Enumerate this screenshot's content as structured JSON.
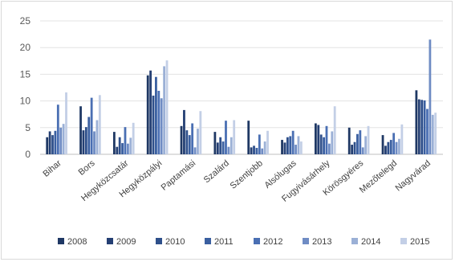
{
  "chart_data": {
    "type": "bar",
    "title": "",
    "xlabel": "",
    "ylabel": "",
    "ylim": [
      0,
      25
    ],
    "yticks": [
      0,
      5,
      10,
      15,
      20,
      25
    ],
    "grid": "horizontal",
    "legend_position": "bottom",
    "categories": [
      "Bihar",
      "Bors",
      "Hegyközcsatár",
      "Hegyközpályi",
      "Paptamási",
      "Szalárd",
      "Szentjobb",
      "Alsólugas",
      "Fugyivásárhely",
      "Körösgyéres",
      "Mezőtelegd",
      "Nagyvárad"
    ],
    "series": [
      {
        "name": "2008",
        "color": "#1f3864",
        "values": [
          3.2,
          9.0,
          4.2,
          14.8,
          5.3,
          4.2,
          6.3,
          2.7,
          5.8,
          5.0,
          3.6,
          12.0
        ]
      },
      {
        "name": "2009",
        "color": "#243f73",
        "values": [
          4.3,
          4.5,
          1.4,
          15.7,
          8.3,
          2.2,
          1.3,
          2.2,
          5.5,
          1.8,
          1.6,
          10.3
        ]
      },
      {
        "name": "2010",
        "color": "#2e4f8a",
        "values": [
          3.6,
          5.1,
          3.2,
          11.0,
          4.5,
          3.2,
          1.6,
          3.2,
          3.7,
          2.3,
          2.3,
          10.2
        ]
      },
      {
        "name": "2011",
        "color": "#3a5fa0",
        "values": [
          4.4,
          7.0,
          2.1,
          14.5,
          3.6,
          2.4,
          1.2,
          3.4,
          3.2,
          3.8,
          2.7,
          10.1
        ]
      },
      {
        "name": "2012",
        "color": "#4a6fb3",
        "values": [
          9.3,
          10.6,
          5.1,
          11.9,
          5.8,
          6.3,
          3.7,
          4.4,
          5.3,
          4.5,
          4.0,
          8.5
        ]
      },
      {
        "name": "2013",
        "color": "#6f8cc4",
        "values": [
          5.0,
          4.3,
          2.0,
          10.5,
          1.3,
          1.4,
          1.1,
          1.8,
          2.0,
          1.3,
          2.3,
          21.5
        ]
      },
      {
        "name": "2014",
        "color": "#9bb0d6",
        "values": [
          5.7,
          6.4,
          3.1,
          16.5,
          4.8,
          3.2,
          2.4,
          3.4,
          4.3,
          3.4,
          2.9,
          7.4
        ]
      },
      {
        "name": "2015",
        "color": "#c3cfe6",
        "values": [
          11.6,
          11.1,
          5.9,
          17.6,
          8.1,
          6.4,
          4.4,
          2.4,
          9.0,
          5.3,
          5.6,
          7.8
        ]
      }
    ]
  }
}
